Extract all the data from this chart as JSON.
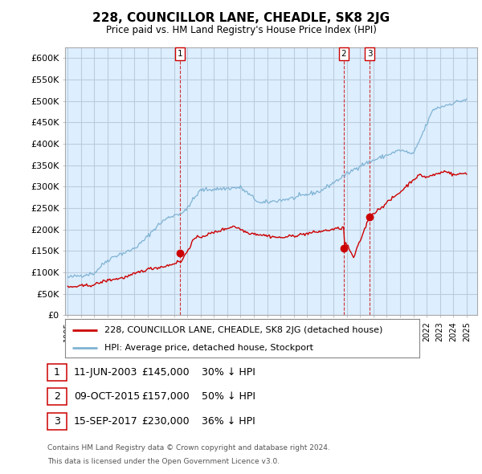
{
  "title": "228, COUNCILLOR LANE, CHEADLE, SK8 2JG",
  "subtitle": "Price paid vs. HM Land Registry's House Price Index (HPI)",
  "ylabel_ticks": [
    "£0",
    "£50K",
    "£100K",
    "£150K",
    "£200K",
    "£250K",
    "£300K",
    "£350K",
    "£400K",
    "£450K",
    "£500K",
    "£550K",
    "£600K"
  ],
  "ylim": [
    0,
    620000
  ],
  "xlim_start": 1995.0,
  "xlim_end": 2025.5,
  "legend_line1": "228, COUNCILLOR LANE, CHEADLE, SK8 2JG (detached house)",
  "legend_line2": "HPI: Average price, detached house, Stockport",
  "sale1_label": "1",
  "sale1_date": "11-JUN-2003",
  "sale1_price": "£145,000",
  "sale1_hpi": "30% ↓ HPI",
  "sale1_year": 2003.45,
  "sale1_value": 145000,
  "sale2_label": "2",
  "sale2_date": "09-OCT-2015",
  "sale2_price": "£157,000",
  "sale2_hpi": "50% ↓ HPI",
  "sale2_year": 2015.77,
  "sale2_value": 157000,
  "sale3_label": "3",
  "sale3_date": "15-SEP-2017",
  "sale3_price": "£230,000",
  "sale3_hpi": "36% ↓ HPI",
  "sale3_year": 2017.71,
  "sale3_value": 230000,
  "line_color_red": "#cc0000",
  "line_color_blue": "#7fb3d3",
  "chart_bg": "#ddeeff",
  "grid_color": "#bbccdd",
  "background_color": "#ffffff",
  "footnote1": "Contains HM Land Registry data © Crown copyright and database right 2024.",
  "footnote2": "This data is licensed under the Open Government Licence v3.0."
}
